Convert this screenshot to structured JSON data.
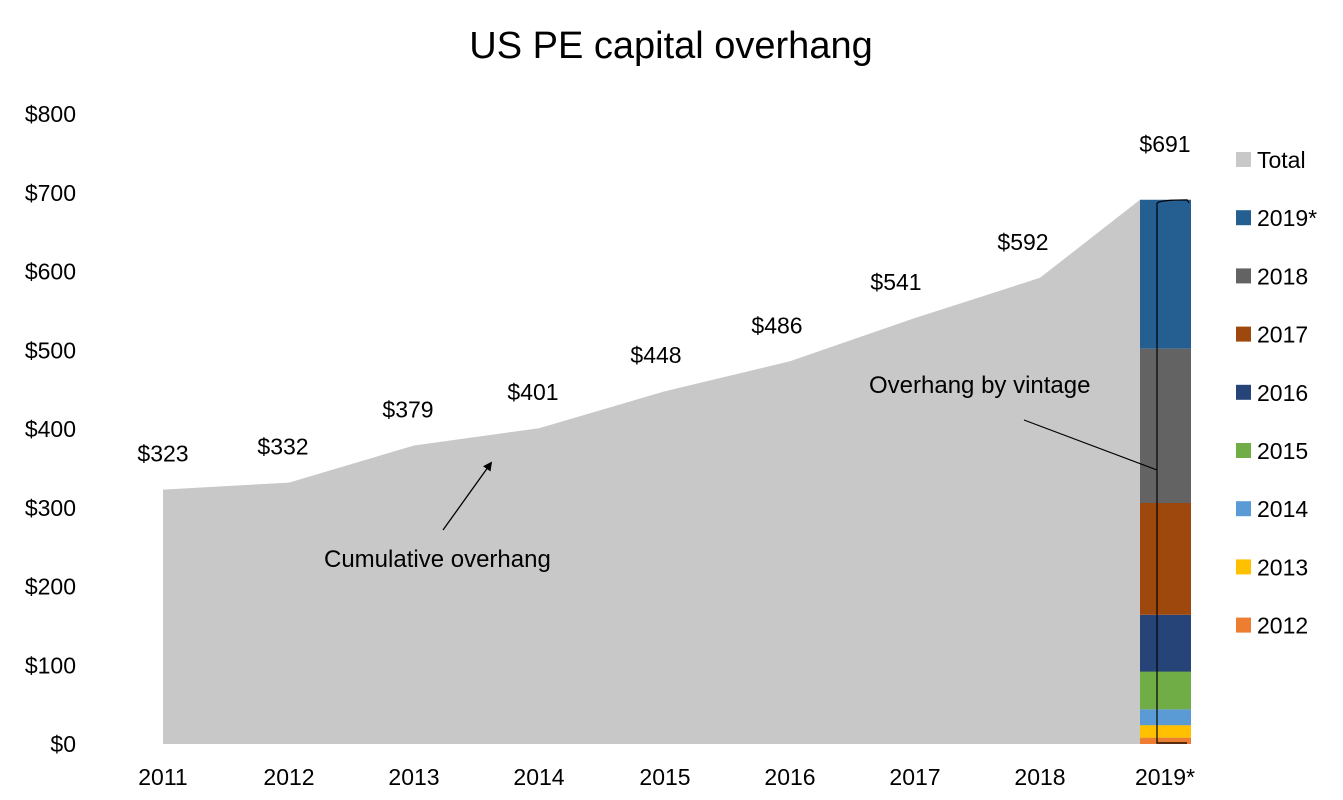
{
  "chart_data": {
    "type": "area",
    "title": "US PE capital overhang",
    "xlabel": "",
    "ylabel": "",
    "ylim": [
      0,
      800
    ],
    "y_ticks": [
      "$0",
      "$100",
      "$200",
      "$300",
      "$400",
      "$500",
      "$600",
      "$700",
      "$800"
    ],
    "categories": [
      "2011",
      "2012",
      "2013",
      "2014",
      "2015",
      "2016",
      "2017",
      "2018",
      "2019*"
    ],
    "series": [
      {
        "name": "Total",
        "type": "area",
        "color": "#c8c8c8",
        "values": [
          323,
          332,
          379,
          401,
          448,
          486,
          541,
          592,
          691
        ],
        "labels": [
          "$323",
          "$332",
          "$379",
          "$401",
          "$448",
          "$486",
          "$541",
          "$592",
          "$691"
        ]
      }
    ],
    "stacked_bar": {
      "category": "2019*",
      "segments": [
        {
          "name": "2012",
          "color": "#ed7d31",
          "value": 8
        },
        {
          "name": "2013",
          "color": "#ffc000",
          "value": 16
        },
        {
          "name": "2014",
          "color": "#5b9bd5",
          "value": 20
        },
        {
          "name": "2015",
          "color": "#70ad47",
          "value": 48
        },
        {
          "name": "2016",
          "color": "#264478",
          "value": 72
        },
        {
          "name": "2017",
          "color": "#9e480e",
          "value": 142
        },
        {
          "name": "2018",
          "color": "#636363",
          "value": 196
        },
        {
          "name": "2019*",
          "color": "#255e91",
          "value": 189
        }
      ]
    },
    "legend": {
      "placement": "right",
      "items": [
        {
          "label": "Total",
          "color": "#c8c8c8"
        },
        {
          "label": "2019*",
          "color": "#255e91"
        },
        {
          "label": "2018",
          "color": "#636363"
        },
        {
          "label": "2017",
          "color": "#9e480e"
        },
        {
          "label": "2016",
          "color": "#264478"
        },
        {
          "label": "2015",
          "color": "#70ad47"
        },
        {
          "label": "2014",
          "color": "#5b9bd5"
        },
        {
          "label": "2013",
          "color": "#ffc000"
        },
        {
          "label": "2012",
          "color": "#ed7d31"
        }
      ]
    },
    "annotations": [
      {
        "text": "Cumulative overhang",
        "points_to": "area"
      },
      {
        "text": "Overhang by vintage",
        "points_to": "stacked_bar"
      }
    ],
    "grid": false
  }
}
